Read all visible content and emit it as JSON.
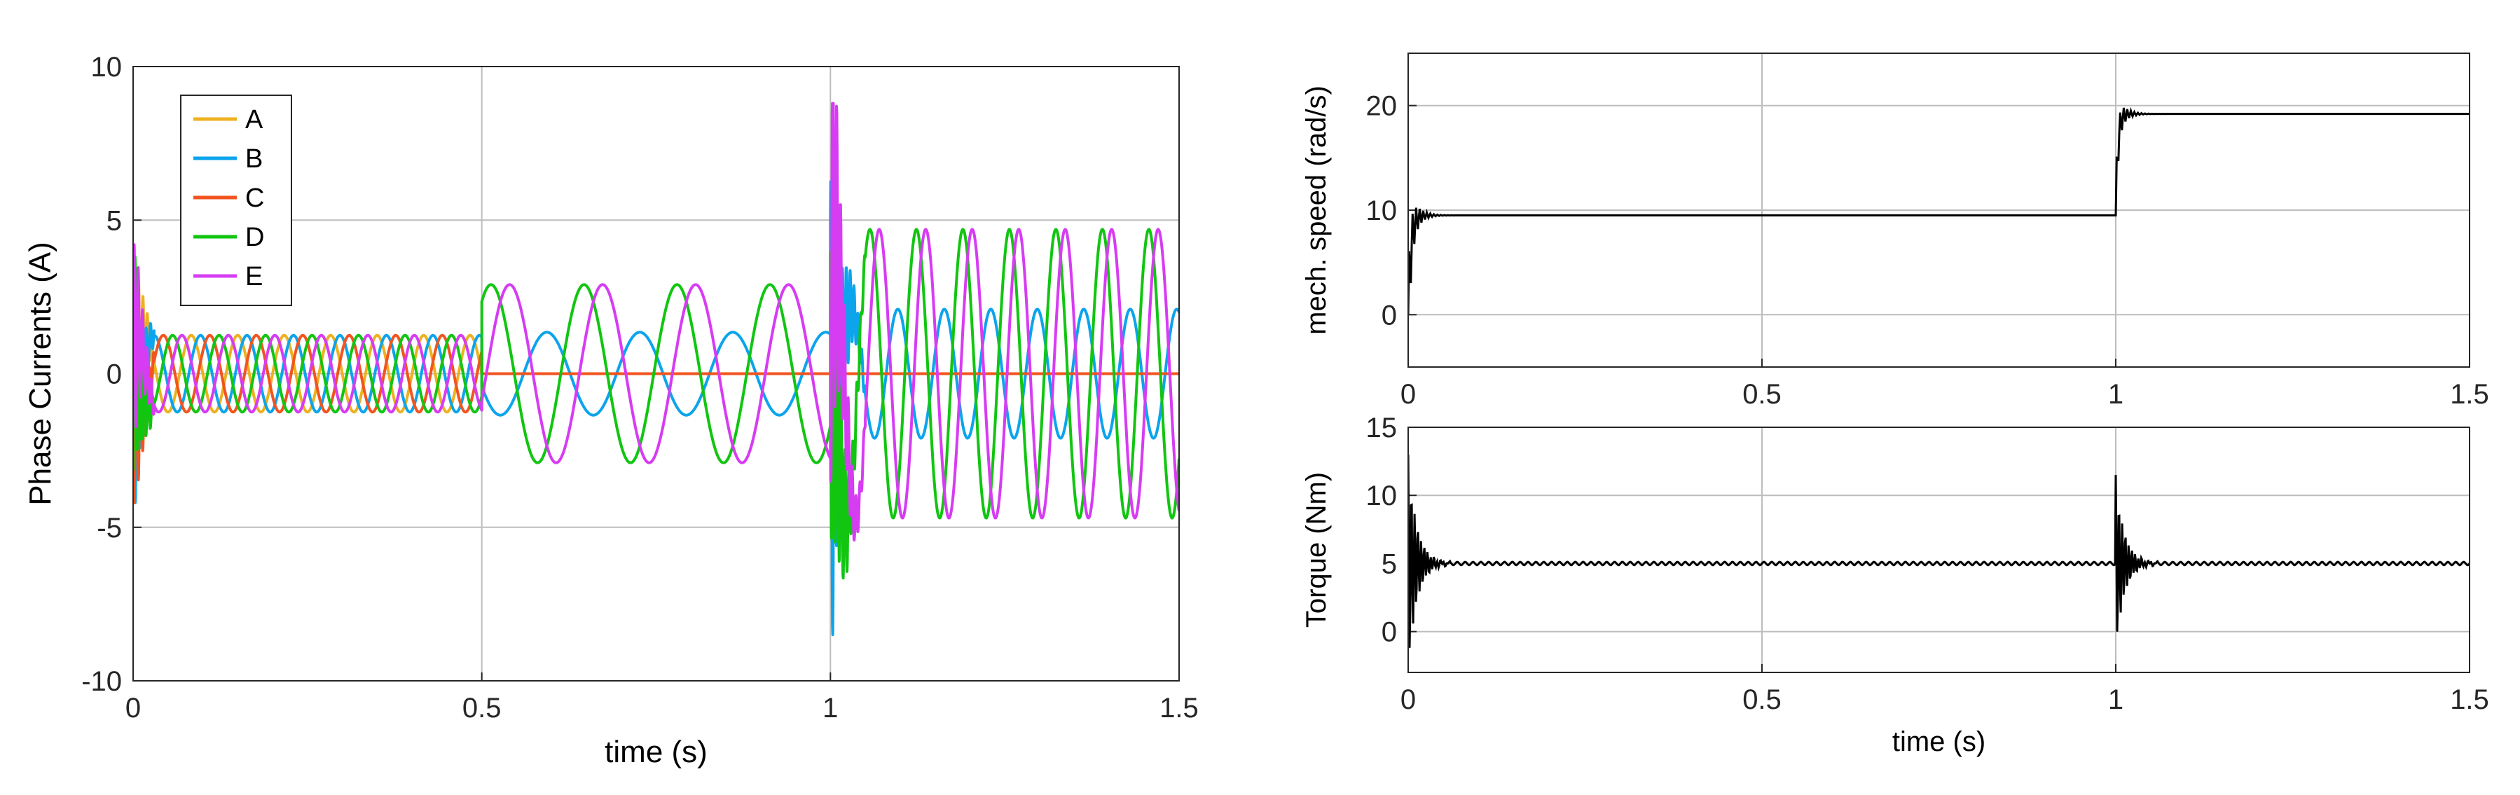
{
  "chart_data": [
    {
      "id": "phase-currents",
      "type": "line",
      "title": "",
      "xlabel": "time (s)",
      "ylabel": "Phase Currents (A)",
      "xlim": [
        0,
        1.5
      ],
      "ylim": [
        -10,
        10
      ],
      "xticks": [
        0,
        0.5,
        1,
        1.5
      ],
      "xtick_labels": [
        "0",
        "0.5",
        "1",
        "1.5"
      ],
      "yticks": [
        -10,
        -5,
        0,
        5,
        10
      ],
      "ytick_labels": [
        "-10",
        "-5",
        "0",
        "5",
        "10"
      ],
      "grid": true,
      "legend_position": "top-left",
      "segments": [
        {
          "t_start": 0.0,
          "t_end": 0.5,
          "amplitude": 1.25,
          "frequency_hz": 15,
          "active_phases": [
            "A",
            "B",
            "C",
            "D",
            "E"
          ]
        },
        {
          "t_start": 0.5,
          "t_end": 1.0,
          "amplitude": 2.9,
          "frequency_hz": 7.5,
          "active_phases": [
            "B",
            "D",
            "E"
          ]
        },
        {
          "t_start": 1.0,
          "t_end": 1.5,
          "amplitude_B": 2.1,
          "amplitude_DE": 4.7,
          "frequency_hz": 15,
          "active_phases": [
            "B",
            "D",
            "E"
          ]
        }
      ],
      "series": [
        {
          "name": "A",
          "color": "#EDB120",
          "phase_deg": 0
        },
        {
          "name": "B",
          "color": "#0CA4EC",
          "phase_deg": -72
        },
        {
          "name": "C",
          "color": "#F2541F",
          "phase_deg": -144
        },
        {
          "name": "D",
          "color": "#11C511",
          "phase_deg": -216
        },
        {
          "name": "E",
          "color": "#D63CF2",
          "phase_deg": -288
        }
      ]
    },
    {
      "id": "mech-speed",
      "type": "line",
      "title": "",
      "xlabel": "",
      "ylabel": "mech. speed (rad/s)",
      "xlim": [
        0,
        1.5
      ],
      "ylim": [
        -5,
        25
      ],
      "xticks": [
        0,
        0.5,
        1,
        1.5
      ],
      "xtick_labels": [
        "0",
        "0.5",
        "1",
        "1.5"
      ],
      "yticks": [
        0,
        10,
        20
      ],
      "ytick_labels": [
        "0",
        "10",
        "20"
      ],
      "grid": true,
      "series": [
        {
          "name": "speed",
          "color": "#000000",
          "x": [
            0,
            0.05,
            1.0,
            1.05,
            1.5
          ],
          "values": [
            0,
            9.5,
            9.5,
            19.2,
            19.2
          ]
        }
      ]
    },
    {
      "id": "torque",
      "type": "line",
      "title": "",
      "xlabel": "time (s)",
      "ylabel": "Torque (Nm)",
      "xlim": [
        0,
        1.5
      ],
      "ylim": [
        -3,
        15
      ],
      "xticks": [
        0,
        0.5,
        1,
        1.5
      ],
      "xtick_labels": [
        "0",
        "0.5",
        "1",
        "1.5"
      ],
      "yticks": [
        0,
        5,
        10,
        15
      ],
      "ytick_labels": [
        "0",
        "5",
        "10",
        "15"
      ],
      "grid": true,
      "series": [
        {
          "name": "torque",
          "color": "#000000",
          "x": [
            0,
            0.05,
            1.0,
            1.05,
            1.5
          ],
          "values": [
            13,
            5,
            5,
            5,
            5
          ]
        }
      ]
    }
  ]
}
